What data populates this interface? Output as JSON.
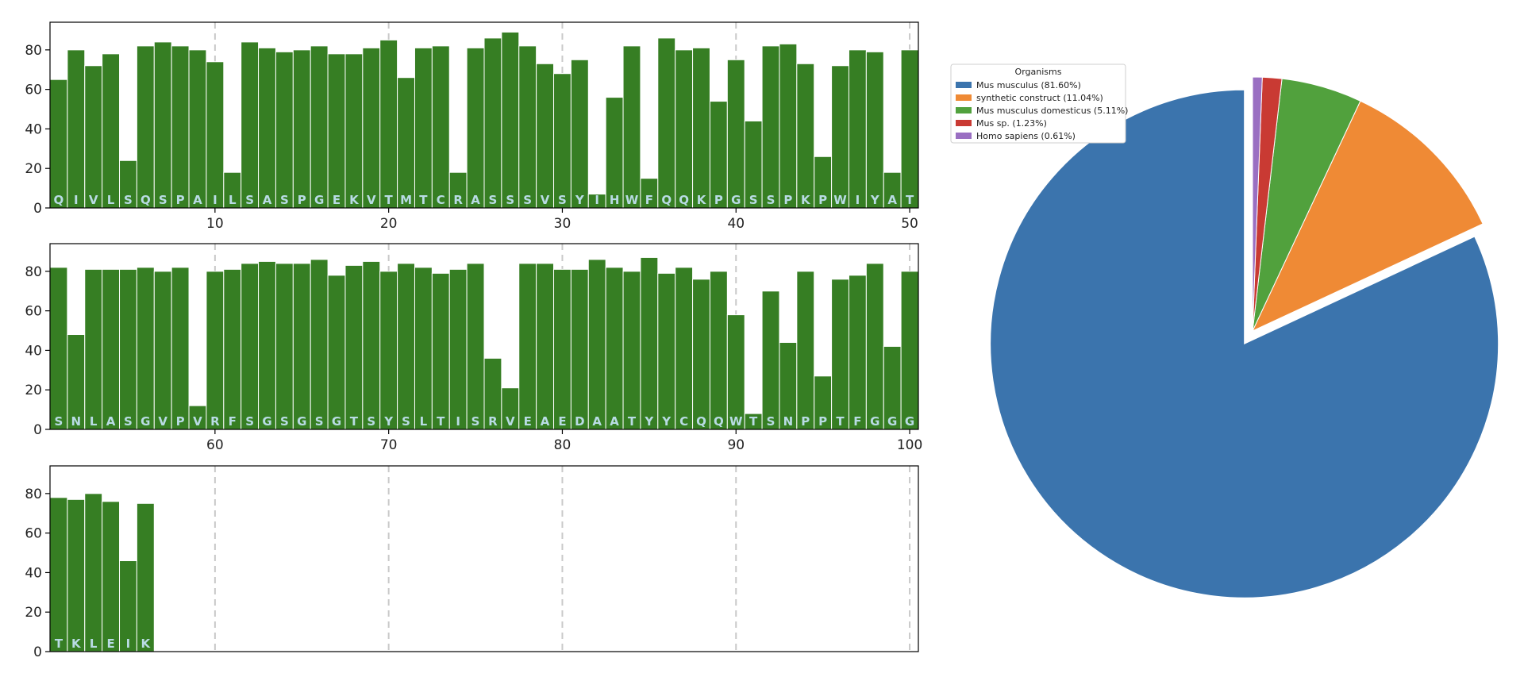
{
  "chart_data": [
    {
      "type": "bar",
      "panels": [
        {
          "x": [
            1,
            2,
            3,
            4,
            5,
            6,
            7,
            8,
            9,
            10,
            11,
            12,
            13,
            14,
            15,
            16,
            17,
            18,
            19,
            20,
            21,
            22,
            23,
            24,
            25,
            26,
            27,
            28,
            29,
            30,
            31,
            32,
            33,
            34,
            35,
            36,
            37,
            38,
            39,
            40,
            41,
            42,
            43,
            44,
            45,
            46,
            47,
            48,
            49,
            50
          ],
          "residues": [
            "Q",
            "I",
            "V",
            "L",
            "S",
            "Q",
            "S",
            "P",
            "A",
            "I",
            "L",
            "S",
            "A",
            "S",
            "P",
            "G",
            "E",
            "K",
            "V",
            "T",
            "M",
            "T",
            "C",
            "R",
            "A",
            "S",
            "S",
            "S",
            "V",
            "S",
            "Y",
            "I",
            "H",
            "W",
            "F",
            "Q",
            "Q",
            "K",
            "P",
            "G",
            "S",
            "S",
            "P",
            "K",
            "P",
            "W",
            "I",
            "Y",
            "A",
            "T"
          ],
          "values": [
            65,
            80,
            72,
            78,
            24,
            82,
            84,
            82,
            80,
            74,
            18,
            84,
            81,
            79,
            80,
            82,
            78,
            78,
            81,
            85,
            66,
            81,
            82,
            18,
            81,
            86,
            89,
            82,
            73,
            68,
            75,
            7,
            56,
            82,
            15,
            86,
            80,
            81,
            54,
            75,
            44,
            82,
            83,
            73,
            26,
            72,
            80,
            79,
            18,
            80
          ],
          "xlim": [
            0.5,
            50.5
          ],
          "xticks": [
            10,
            20,
            30,
            40,
            50
          ]
        },
        {
          "x": [
            51,
            52,
            53,
            54,
            55,
            56,
            57,
            58,
            59,
            60,
            61,
            62,
            63,
            64,
            65,
            66,
            67,
            68,
            69,
            70,
            71,
            72,
            73,
            74,
            75,
            76,
            77,
            78,
            79,
            80,
            81,
            82,
            83,
            84,
            85,
            86,
            87,
            88,
            89,
            90,
            91,
            92,
            93,
            94,
            95,
            96,
            97,
            98,
            99,
            100
          ],
          "residues": [
            "S",
            "N",
            "L",
            "A",
            "S",
            "G",
            "V",
            "P",
            "V",
            "R",
            "F",
            "S",
            "G",
            "S",
            "G",
            "S",
            "G",
            "T",
            "S",
            "Y",
            "S",
            "L",
            "T",
            "I",
            "S",
            "R",
            "V",
            "E",
            "A",
            "E",
            "D",
            "A",
            "A",
            "T",
            "Y",
            "Y",
            "C",
            "Q",
            "Q",
            "W",
            "T",
            "S",
            "N",
            "P",
            "P",
            "T",
            "F",
            "G",
            "G",
            "G"
          ],
          "values": [
            82,
            48,
            81,
            81,
            81,
            82,
            80,
            82,
            12,
            80,
            81,
            84,
            85,
            84,
            84,
            86,
            78,
            83,
            85,
            80,
            84,
            82,
            79,
            81,
            84,
            36,
            21,
            84,
            84,
            81,
            81,
            86,
            82,
            80,
            87,
            79,
            82,
            76,
            80,
            58,
            8,
            70,
            44,
            80,
            27,
            76,
            78,
            84,
            42,
            80
          ],
          "xlim": [
            50.5,
            100.5
          ],
          "xticks": [
            60,
            70,
            80,
            90,
            100
          ]
        },
        {
          "x": [
            101,
            102,
            103,
            104,
            105,
            106
          ],
          "residues": [
            "T",
            "K",
            "L",
            "E",
            "I",
            "K"
          ],
          "values": [
            78,
            77,
            80,
            76,
            46,
            75
          ],
          "xlim": [
            100.5,
            150.5
          ],
          "xticks": []
        }
      ],
      "ylim": [
        0,
        94
      ],
      "yticks": [
        0,
        20,
        40,
        60,
        80
      ],
      "dashed_guides_every": 10,
      "bar_color": "#367e23",
      "bar_edge_color": "#ffffff",
      "label_color": "#b9dbe4",
      "grid": false
    },
    {
      "type": "pie",
      "legend_title": "Organisms",
      "legend_placement": "top-left",
      "labels": [
        "Mus musculus (81.60%)",
        "synthetic construct (11.04%)",
        "Mus musculus domesticus (5.11%)",
        "Mus sp. (1.23%)",
        "Homo sapiens (0.61%)"
      ],
      "values": [
        81.6,
        11.04,
        5.11,
        1.23,
        0.61
      ],
      "colors": [
        "#3b74ad",
        "#ef8a35",
        "#51a13d",
        "#c93a33",
        "#9a6fc2"
      ],
      "exploded": [
        true,
        false,
        false,
        false,
        false
      ],
      "start": "top, counter-clockwise"
    }
  ]
}
